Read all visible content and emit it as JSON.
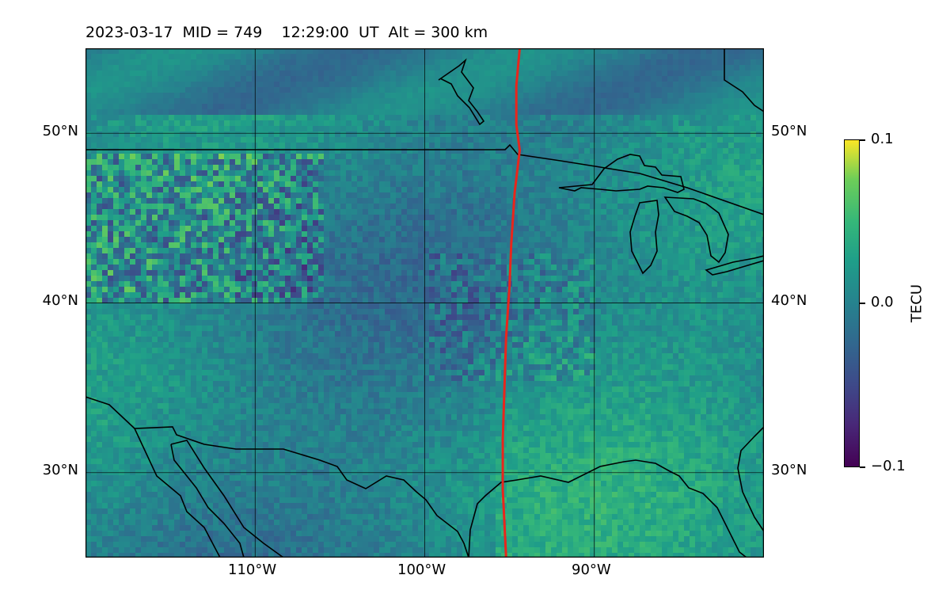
{
  "title": "2023-03-17  MID = 749    12:29:00  UT  Alt = 300 km",
  "map": {
    "lon_range": [
      -120,
      -80
    ],
    "lat_range": [
      25,
      55
    ],
    "meridians": [
      -110,
      -100,
      -90
    ],
    "parallels": [
      30,
      40,
      50
    ],
    "lon_labels": [
      "110°W",
      "100°W",
      "90°W"
    ],
    "lat_labels": [
      "30°N",
      "40°N",
      "50°N"
    ],
    "field_color_low": "#440154",
    "field_color_mid": "#21918c",
    "field_color_high": "#fde725",
    "track_color": "#e8261c",
    "track": [
      [
        -94.4,
        55
      ],
      [
        -94.6,
        52.8
      ],
      [
        -94.6,
        50.5
      ],
      [
        -94.4,
        49
      ],
      [
        -94.7,
        46.5
      ],
      [
        -94.9,
        43.5
      ],
      [
        -95.0,
        41
      ],
      [
        -95.2,
        38
      ],
      [
        -95.3,
        35
      ],
      [
        -95.4,
        32
      ],
      [
        -95.4,
        29
      ],
      [
        -95.3,
        27
      ],
      [
        -95.2,
        25
      ]
    ]
  },
  "colorbar": {
    "label": "TECU",
    "min": -0.1,
    "max": 0.1,
    "ticks": [
      "0.1",
      "0.0",
      "−0.1"
    ]
  }
}
